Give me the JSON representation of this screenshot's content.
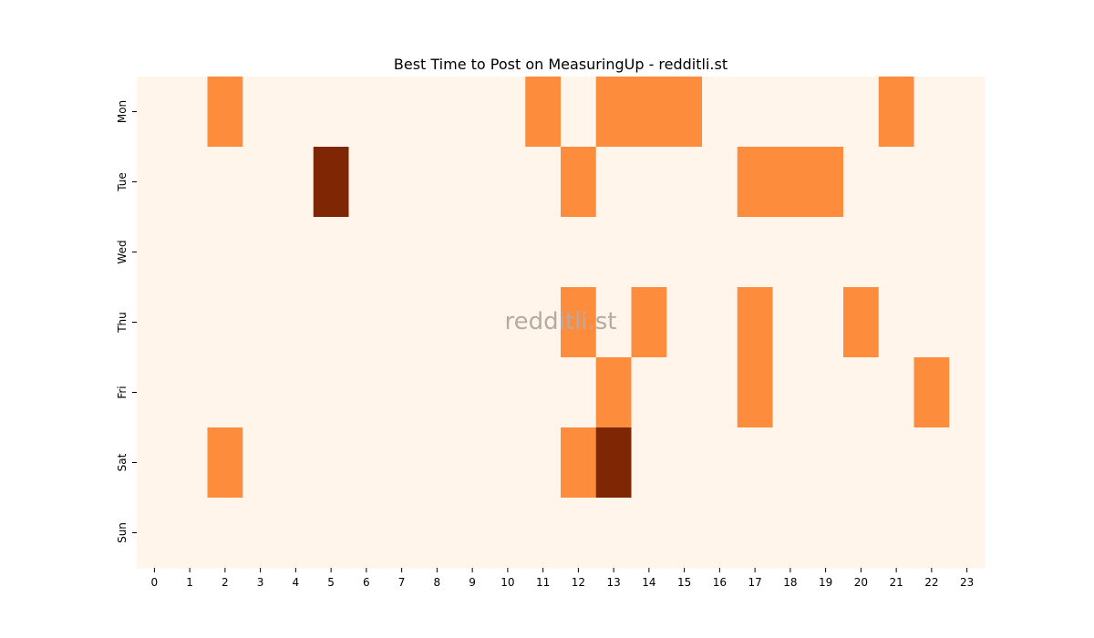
{
  "chart_data": {
    "type": "heatmap",
    "title": "Best Time to Post on MeasuringUp - redditli.st",
    "watermark": "redditli.st",
    "xlabel": "",
    "ylabel": "",
    "x_categories": [
      "0",
      "1",
      "2",
      "3",
      "4",
      "5",
      "6",
      "7",
      "8",
      "9",
      "10",
      "11",
      "12",
      "13",
      "14",
      "15",
      "16",
      "17",
      "18",
      "19",
      "20",
      "21",
      "22",
      "23"
    ],
    "y_categories": [
      "Mon",
      "Tue",
      "Wed",
      "Thu",
      "Fri",
      "Sat",
      "Sun"
    ],
    "value_range": [
      0,
      2
    ],
    "values": [
      [
        0,
        0,
        1,
        0,
        0,
        0,
        0,
        0,
        0,
        0,
        0,
        1,
        0,
        1,
        1,
        1,
        0,
        0,
        0,
        0,
        0,
        1,
        0,
        0
      ],
      [
        0,
        0,
        0,
        0,
        0,
        2,
        0,
        0,
        0,
        0,
        0,
        0,
        1,
        0,
        0,
        0,
        0,
        1,
        1,
        1,
        0,
        0,
        0,
        0
      ],
      [
        0,
        0,
        0,
        0,
        0,
        0,
        0,
        0,
        0,
        0,
        0,
        0,
        0,
        0,
        0,
        0,
        0,
        0,
        0,
        0,
        0,
        0,
        0,
        0
      ],
      [
        0,
        0,
        0,
        0,
        0,
        0,
        0,
        0,
        0,
        0,
        0,
        0,
        1,
        0,
        1,
        0,
        0,
        1,
        0,
        0,
        1,
        0,
        0,
        0
      ],
      [
        0,
        0,
        0,
        0,
        0,
        0,
        0,
        0,
        0,
        0,
        0,
        0,
        0,
        1,
        0,
        0,
        0,
        1,
        0,
        0,
        0,
        0,
        1,
        0
      ],
      [
        0,
        0,
        1,
        0,
        0,
        0,
        0,
        0,
        0,
        0,
        0,
        0,
        1,
        2,
        0,
        0,
        0,
        0,
        0,
        0,
        0,
        0,
        0,
        0
      ],
      [
        0,
        0,
        0,
        0,
        0,
        0,
        0,
        0,
        0,
        0,
        0,
        0,
        0,
        0,
        0,
        0,
        0,
        0,
        0,
        0,
        0,
        0,
        0,
        0
      ]
    ],
    "colors": {
      "low": "#fff5eb",
      "mid": "#fd8d3c",
      "high": "#7f2704"
    },
    "grid": false,
    "legend": "none"
  }
}
